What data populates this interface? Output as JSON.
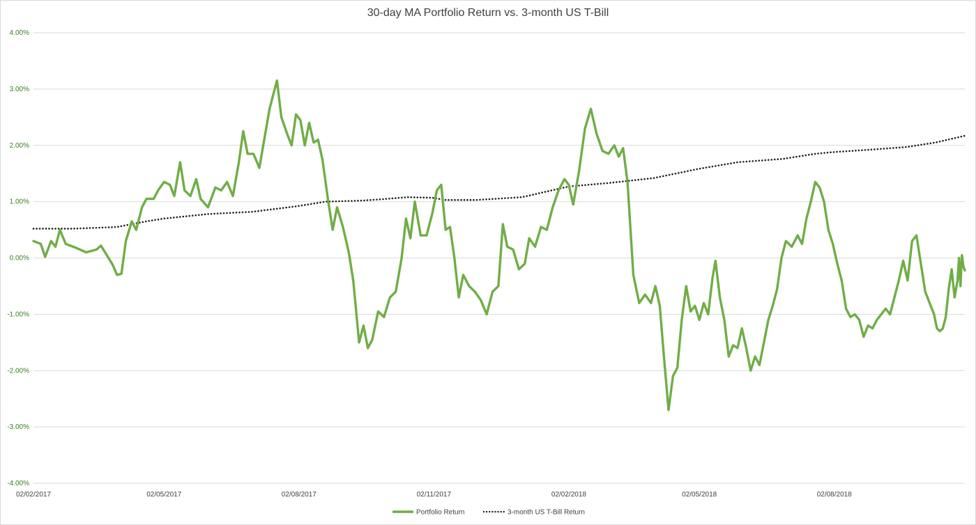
{
  "chart_data": {
    "type": "line",
    "title": "30-day MA Portfolio Return vs. 3-month US T-Bill",
    "ylim": [
      -4.0,
      4.0
    ],
    "y_ticks": [
      "4.00%",
      "3.00%",
      "2.00%",
      "1.00%",
      "0.00%",
      "-1.00%",
      "-2.00%",
      "-3.00%",
      "-4.00%"
    ],
    "y_tick_values": [
      4,
      3,
      2,
      1,
      0,
      -1,
      -2,
      -3,
      -4
    ],
    "x_range": [
      "2017-02-02",
      "2018-10-30"
    ],
    "x_ticks": [
      {
        "label": "02/02/2017",
        "date": "2017-02-02"
      },
      {
        "label": "02/05/2017",
        "date": "2017-05-02"
      },
      {
        "label": "02/08/2017",
        "date": "2017-08-02"
      },
      {
        "label": "02/11/2017",
        "date": "2017-11-02"
      },
      {
        "label": "02/02/2018",
        "date": "2018-02-02"
      },
      {
        "label": "02/05/2018",
        "date": "2018-05-02"
      },
      {
        "label": "02/08/2018",
        "date": "2018-08-02"
      }
    ],
    "grid": true,
    "legend_position": "bottom",
    "series": [
      {
        "name": "Portfolio Return",
        "color": "#70ad47",
        "style": "solid",
        "points": [
          [
            "2017-02-02",
            0.3
          ],
          [
            "2017-02-07",
            0.25
          ],
          [
            "2017-02-10",
            0.02
          ],
          [
            "2017-02-14",
            0.3
          ],
          [
            "2017-02-17",
            0.2
          ],
          [
            "2017-02-20",
            0.5
          ],
          [
            "2017-02-24",
            0.25
          ],
          [
            "2017-03-03",
            0.18
          ],
          [
            "2017-03-10",
            0.1
          ],
          [
            "2017-03-17",
            0.15
          ],
          [
            "2017-03-20",
            0.22
          ],
          [
            "2017-03-24",
            0.05
          ],
          [
            "2017-03-28",
            -0.12
          ],
          [
            "2017-03-31",
            -0.3
          ],
          [
            "2017-04-03",
            -0.28
          ],
          [
            "2017-04-06",
            0.3
          ],
          [
            "2017-04-10",
            0.65
          ],
          [
            "2017-04-13",
            0.5
          ],
          [
            "2017-04-17",
            0.9
          ],
          [
            "2017-04-20",
            1.05
          ],
          [
            "2017-04-25",
            1.05
          ],
          [
            "2017-04-28",
            1.2
          ],
          [
            "2017-05-02",
            1.35
          ],
          [
            "2017-05-06",
            1.3
          ],
          [
            "2017-05-09",
            1.1
          ],
          [
            "2017-05-13",
            1.7
          ],
          [
            "2017-05-16",
            1.2
          ],
          [
            "2017-05-20",
            1.1
          ],
          [
            "2017-05-24",
            1.4
          ],
          [
            "2017-05-27",
            1.05
          ],
          [
            "2017-06-01",
            0.9
          ],
          [
            "2017-06-06",
            1.25
          ],
          [
            "2017-06-10",
            1.2
          ],
          [
            "2017-06-14",
            1.35
          ],
          [
            "2017-06-18",
            1.1
          ],
          [
            "2017-06-22",
            1.7
          ],
          [
            "2017-06-25",
            2.25
          ],
          [
            "2017-06-28",
            1.85
          ],
          [
            "2017-07-02",
            1.85
          ],
          [
            "2017-07-06",
            1.6
          ],
          [
            "2017-07-10",
            2.2
          ],
          [
            "2017-07-13",
            2.65
          ],
          [
            "2017-07-16",
            2.95
          ],
          [
            "2017-07-18",
            3.15
          ],
          [
            "2017-07-21",
            2.5
          ],
          [
            "2017-07-25",
            2.2
          ],
          [
            "2017-07-28",
            2.0
          ],
          [
            "2017-07-31",
            2.55
          ],
          [
            "2017-08-03",
            2.45
          ],
          [
            "2017-08-06",
            2.0
          ],
          [
            "2017-08-09",
            2.4
          ],
          [
            "2017-08-12",
            2.05
          ],
          [
            "2017-08-15",
            2.1
          ],
          [
            "2017-08-18",
            1.75
          ],
          [
            "2017-08-22",
            1.0
          ],
          [
            "2017-08-25",
            0.5
          ],
          [
            "2017-08-28",
            0.9
          ],
          [
            "2017-09-01",
            0.55
          ],
          [
            "2017-09-05",
            0.1
          ],
          [
            "2017-09-08",
            -0.4
          ],
          [
            "2017-09-12",
            -1.5
          ],
          [
            "2017-09-15",
            -1.2
          ],
          [
            "2017-09-18",
            -1.6
          ],
          [
            "2017-09-21",
            -1.45
          ],
          [
            "2017-09-25",
            -0.95
          ],
          [
            "2017-09-29",
            -1.05
          ],
          [
            "2017-10-03",
            -0.7
          ],
          [
            "2017-10-07",
            -0.6
          ],
          [
            "2017-10-11",
            0.0
          ],
          [
            "2017-10-14",
            0.7
          ],
          [
            "2017-10-17",
            0.35
          ],
          [
            "2017-10-20",
            1.0
          ],
          [
            "2017-10-24",
            0.4
          ],
          [
            "2017-10-28",
            0.4
          ],
          [
            "2017-11-01",
            0.8
          ],
          [
            "2017-11-04",
            1.2
          ],
          [
            "2017-11-07",
            1.3
          ],
          [
            "2017-11-10",
            0.5
          ],
          [
            "2017-11-13",
            0.55
          ],
          [
            "2017-11-16",
            0.0
          ],
          [
            "2017-11-19",
            -0.7
          ],
          [
            "2017-11-22",
            -0.3
          ],
          [
            "2017-11-26",
            -0.5
          ],
          [
            "2017-11-30",
            -0.6
          ],
          [
            "2017-12-04",
            -0.75
          ],
          [
            "2017-12-08",
            -1.0
          ],
          [
            "2017-12-12",
            -0.6
          ],
          [
            "2017-12-16",
            -0.5
          ],
          [
            "2017-12-19",
            0.6
          ],
          [
            "2017-12-22",
            0.2
          ],
          [
            "2017-12-26",
            0.15
          ],
          [
            "2017-12-30",
            -0.2
          ],
          [
            "2018-01-03",
            -0.1
          ],
          [
            "2018-01-06",
            0.35
          ],
          [
            "2018-01-10",
            0.2
          ],
          [
            "2018-01-14",
            0.55
          ],
          [
            "2018-01-18",
            0.5
          ],
          [
            "2018-01-22",
            0.9
          ],
          [
            "2018-01-26",
            1.2
          ],
          [
            "2018-01-30",
            1.4
          ],
          [
            "2018-02-02",
            1.3
          ],
          [
            "2018-02-05",
            0.95
          ],
          [
            "2018-02-09",
            1.55
          ],
          [
            "2018-02-13",
            2.3
          ],
          [
            "2018-02-17",
            2.65
          ],
          [
            "2018-02-21",
            2.2
          ],
          [
            "2018-02-25",
            1.9
          ],
          [
            "2018-03-01",
            1.85
          ],
          [
            "2018-03-05",
            2.0
          ],
          [
            "2018-03-08",
            1.8
          ],
          [
            "2018-03-11",
            1.95
          ],
          [
            "2018-03-14",
            1.35
          ],
          [
            "2018-03-18",
            -0.3
          ],
          [
            "2018-03-22",
            -0.8
          ],
          [
            "2018-03-26",
            -0.65
          ],
          [
            "2018-03-30",
            -0.8
          ],
          [
            "2018-04-02",
            -0.5
          ],
          [
            "2018-04-05",
            -0.85
          ],
          [
            "2018-04-08",
            -1.8
          ],
          [
            "2018-04-11",
            -2.7
          ],
          [
            "2018-04-14",
            -2.1
          ],
          [
            "2018-04-17",
            -1.95
          ],
          [
            "2018-04-20",
            -1.1
          ],
          [
            "2018-04-23",
            -0.5
          ],
          [
            "2018-04-26",
            -0.95
          ],
          [
            "2018-04-29",
            -0.85
          ],
          [
            "2018-05-02",
            -1.1
          ],
          [
            "2018-05-05",
            -0.8
          ],
          [
            "2018-05-08",
            -1.0
          ],
          [
            "2018-05-11",
            -0.35
          ],
          [
            "2018-05-13",
            -0.05
          ],
          [
            "2018-05-16",
            -0.7
          ],
          [
            "2018-05-19",
            -1.1
          ],
          [
            "2018-05-22",
            -1.75
          ],
          [
            "2018-05-25",
            -1.55
          ],
          [
            "2018-05-28",
            -1.6
          ],
          [
            "2018-05-31",
            -1.25
          ],
          [
            "2018-06-03",
            -1.6
          ],
          [
            "2018-06-06",
            -2.0
          ],
          [
            "2018-06-09",
            -1.75
          ],
          [
            "2018-06-12",
            -1.9
          ],
          [
            "2018-06-15",
            -1.5
          ],
          [
            "2018-06-18",
            -1.1
          ],
          [
            "2018-06-21",
            -0.85
          ],
          [
            "2018-06-24",
            -0.55
          ],
          [
            "2018-06-27",
            0.0
          ],
          [
            "2018-06-30",
            0.3
          ],
          [
            "2018-07-04",
            0.2
          ],
          [
            "2018-07-08",
            0.4
          ],
          [
            "2018-07-11",
            0.25
          ],
          [
            "2018-07-14",
            0.7
          ],
          [
            "2018-07-17",
            1.0
          ],
          [
            "2018-07-20",
            1.35
          ],
          [
            "2018-07-23",
            1.25
          ],
          [
            "2018-07-26",
            1.0
          ],
          [
            "2018-07-29",
            0.5
          ],
          [
            "2018-08-01",
            0.25
          ],
          [
            "2018-08-04",
            -0.1
          ],
          [
            "2018-08-07",
            -0.4
          ],
          [
            "2018-08-10",
            -0.9
          ],
          [
            "2018-08-13",
            -1.05
          ],
          [
            "2018-08-16",
            -1.0
          ],
          [
            "2018-08-19",
            -1.1
          ],
          [
            "2018-08-22",
            -1.4
          ],
          [
            "2018-08-25",
            -1.2
          ],
          [
            "2018-08-28",
            -1.25
          ],
          [
            "2018-08-31",
            -1.1
          ],
          [
            "2018-09-03",
            -1.0
          ],
          [
            "2018-09-06",
            -0.9
          ],
          [
            "2018-09-09",
            -1.0
          ],
          [
            "2018-09-12",
            -0.7
          ],
          [
            "2018-09-15",
            -0.4
          ],
          [
            "2018-09-18",
            -0.05
          ],
          [
            "2018-09-21",
            -0.4
          ],
          [
            "2018-09-24",
            0.3
          ],
          [
            "2018-09-27",
            0.4
          ],
          [
            "2018-09-30",
            -0.1
          ],
          [
            "2018-10-03",
            -0.6
          ],
          [
            "2018-10-06",
            -0.8
          ],
          [
            "2018-10-09",
            -1.0
          ],
          [
            "2018-10-11",
            -1.25
          ],
          [
            "2018-10-13",
            -1.3
          ],
          [
            "2018-10-15",
            -1.25
          ],
          [
            "2018-10-17",
            -1.05
          ],
          [
            "2018-10-19",
            -0.55
          ],
          [
            "2018-10-21",
            -0.2
          ],
          [
            "2018-10-23",
            -0.7
          ],
          [
            "2018-10-25",
            -0.4
          ],
          [
            "2018-10-26",
            0.0
          ],
          [
            "2018-10-27",
            -0.5
          ],
          [
            "2018-10-28",
            0.05
          ],
          [
            "2018-10-29",
            -0.15
          ],
          [
            "2018-10-30",
            -0.22
          ]
        ]
      },
      {
        "name": "3-month US T-Bill Return",
        "color": "#1e1e1e",
        "style": "dotted",
        "points": [
          [
            "2017-02-02",
            0.52
          ],
          [
            "2017-03-01",
            0.52
          ],
          [
            "2017-03-31",
            0.55
          ],
          [
            "2017-04-20",
            0.65
          ],
          [
            "2017-05-02",
            0.7
          ],
          [
            "2017-06-01",
            0.78
          ],
          [
            "2017-07-01",
            0.82
          ],
          [
            "2017-08-01",
            0.92
          ],
          [
            "2017-08-20",
            1.0
          ],
          [
            "2017-09-15",
            1.02
          ],
          [
            "2017-10-01",
            1.05
          ],
          [
            "2017-10-15",
            1.08
          ],
          [
            "2017-11-01",
            1.07
          ],
          [
            "2017-11-10",
            1.03
          ],
          [
            "2017-12-01",
            1.03
          ],
          [
            "2018-01-01",
            1.08
          ],
          [
            "2018-02-02",
            1.27
          ],
          [
            "2018-03-01",
            1.33
          ],
          [
            "2018-04-01",
            1.42
          ],
          [
            "2018-05-01",
            1.58
          ],
          [
            "2018-05-28",
            1.7
          ],
          [
            "2018-06-28",
            1.76
          ],
          [
            "2018-07-20",
            1.85
          ],
          [
            "2018-08-01",
            1.88
          ],
          [
            "2018-08-25",
            1.92
          ],
          [
            "2018-09-20",
            1.97
          ],
          [
            "2018-10-10",
            2.05
          ],
          [
            "2018-10-30",
            2.17
          ]
        ]
      }
    ]
  }
}
